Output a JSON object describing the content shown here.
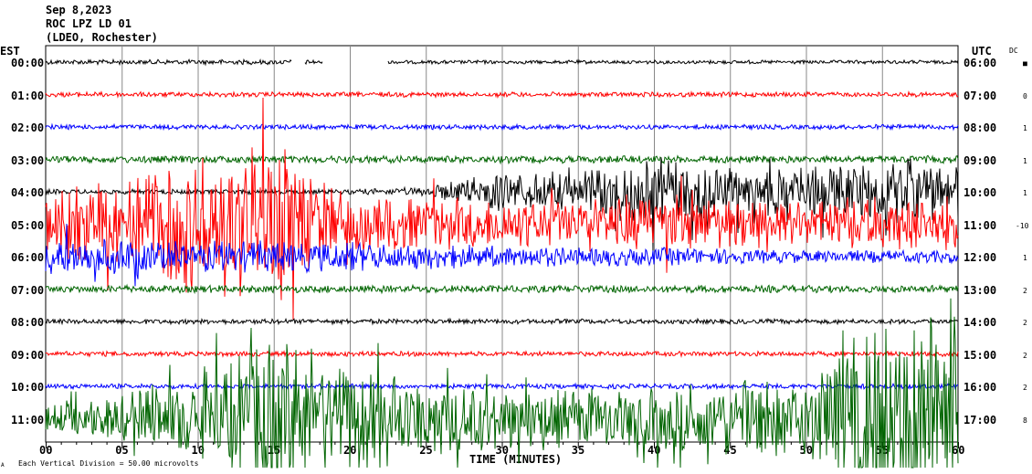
{
  "header": {
    "date": "Sep 8,2023",
    "station": "ROC LPZ LD 01",
    "network": "(LDEO, Rochester)"
  },
  "left_axis_title": "EST",
  "right_axis_title": "UTC",
  "dc_title": "DC",
  "footer": {
    "scale_note": "Each Vertical Division =   50.00 microvolts",
    "corner_mark": "A"
  },
  "chart_data": {
    "type": "line",
    "title": "ROC LPZ LD 01 helicorder Sep 8,2023",
    "xlabel": "TIME (MINUTES)",
    "xlim": [
      0,
      60
    ],
    "x_ticks": [
      "00",
      "05",
      "10",
      "15",
      "20",
      "25",
      "30",
      "35",
      "40",
      "45",
      "50",
      "55",
      "60"
    ],
    "vertical_division_microvolts": 50.0,
    "rows": [
      {
        "est": "00:00",
        "utc": "06:00",
        "dc": "■",
        "color": "#000000",
        "envelope": [
          0.08,
          0.08,
          0.08,
          0.08,
          0.06,
          0.06,
          0.06,
          0.06,
          0.06,
          0.06,
          0.06,
          0.06
        ],
        "gaps": [
          [
            16.2,
            17.0
          ],
          [
            18.2,
            22.5
          ]
        ]
      },
      {
        "est": "01:00",
        "utc": "07:00",
        "dc": "0",
        "color": "#ff0000",
        "envelope": [
          0.08,
          0.08,
          0.08,
          0.08,
          0.08,
          0.08,
          0.08,
          0.08,
          0.08,
          0.08,
          0.08,
          0.08
        ]
      },
      {
        "est": "02:00",
        "utc": "08:00",
        "dc": "1",
        "color": "#0000ff",
        "envelope": [
          0.08,
          0.08,
          0.08,
          0.08,
          0.08,
          0.08,
          0.08,
          0.08,
          0.08,
          0.08,
          0.08,
          0.08
        ]
      },
      {
        "est": "03:00",
        "utc": "09:00",
        "dc": "1",
        "color": "#006400",
        "envelope": [
          0.12,
          0.12,
          0.12,
          0.12,
          0.12,
          0.12,
          0.12,
          0.12,
          0.12,
          0.12,
          0.12,
          0.12
        ]
      },
      {
        "est": "04:00",
        "utc": "10:00",
        "dc": "1",
        "color": "#000000",
        "envelope": [
          0.08,
          0.08,
          0.08,
          0.08,
          0.08,
          0.15,
          0.7,
          0.6,
          1.1,
          0.8,
          0.8,
          0.9
        ]
      },
      {
        "est": "05:00",
        "utc": "11:00",
        "dc": "-10",
        "color": "#ff0000",
        "envelope": [
          1.0,
          1.3,
          2.4,
          2.2,
          0.9,
          0.8,
          0.8,
          0.7,
          0.9,
          0.8,
          0.7,
          0.9
        ]
      },
      {
        "est": "06:00",
        "utc": "12:00",
        "dc": "1",
        "color": "#0000ff",
        "envelope": [
          0.6,
          0.6,
          0.5,
          0.5,
          0.5,
          0.4,
          0.35,
          0.3,
          0.3,
          0.25,
          0.2,
          0.2
        ]
      },
      {
        "est": "07:00",
        "utc": "13:00",
        "dc": "2",
        "color": "#006400",
        "envelope": [
          0.12,
          0.12,
          0.12,
          0.12,
          0.12,
          0.12,
          0.12,
          0.12,
          0.12,
          0.12,
          0.12,
          0.12
        ]
      },
      {
        "est": "08:00",
        "utc": "14:00",
        "dc": "2",
        "color": "#000000",
        "envelope": [
          0.08,
          0.08,
          0.08,
          0.08,
          0.08,
          0.08,
          0.08,
          0.08,
          0.08,
          0.08,
          0.08,
          0.08
        ]
      },
      {
        "est": "09:00",
        "utc": "15:00",
        "dc": "2",
        "color": "#ff0000",
        "envelope": [
          0.08,
          0.08,
          0.08,
          0.08,
          0.08,
          0.08,
          0.08,
          0.08,
          0.08,
          0.08,
          0.08,
          0.08
        ]
      },
      {
        "est": "10:00",
        "utc": "16:00",
        "dc": "2",
        "color": "#0000ff",
        "envelope": [
          0.08,
          0.08,
          0.08,
          0.08,
          0.08,
          0.08,
          0.08,
          0.08,
          0.08,
          0.08,
          0.08,
          0.08
        ]
      },
      {
        "est": "11:00",
        "utc": "17:00",
        "dc": "8",
        "color": "#006400",
        "envelope": [
          0.4,
          0.8,
          1.2,
          3.0,
          1.8,
          1.2,
          1.0,
          0.9,
          1.0,
          1.1,
          1.3,
          3.5
        ]
      }
    ]
  }
}
